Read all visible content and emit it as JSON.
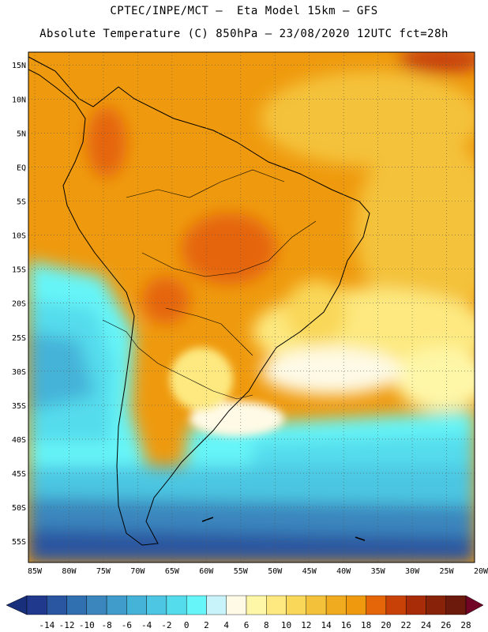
{
  "header": {
    "line1": "CPTEC/INPE/MCT –  Eta Model 15km – GFS",
    "line2": "Absolute Temperature (C) 850hPa – 23/08/2020 12UTC fct=28h"
  },
  "map": {
    "lon_range": [
      -85,
      -20
    ],
    "lat_range": [
      -58,
      17
    ],
    "lat_labels": [
      "15N",
      "10N",
      "5N",
      "EQ",
      "5S",
      "10S",
      "15S",
      "20S",
      "25S",
      "30S",
      "35S",
      "40S",
      "45S",
      "50S",
      "55S"
    ],
    "lat_values": [
      15,
      10,
      5,
      0,
      -5,
      -10,
      -15,
      -20,
      -25,
      -30,
      -35,
      -40,
      -45,
      -50,
      -55
    ],
    "lon_labels": [
      "85W",
      "80W",
      "75W",
      "70W",
      "65W",
      "60W",
      "55W",
      "50W",
      "45W",
      "40W",
      "35W",
      "30W",
      "25W",
      "20W"
    ],
    "lon_values": [
      -85,
      -80,
      -75,
      -70,
      -65,
      -60,
      -55,
      -50,
      -45,
      -40,
      -35,
      -30,
      -25,
      -20
    ],
    "gridlines": "dotted"
  },
  "colorbar": {
    "labels": [
      "-14",
      "-12",
      "-10",
      "-8",
      "-6",
      "-4",
      "-2",
      "0",
      "2",
      "4",
      "6",
      "8",
      "10",
      "12",
      "14",
      "16",
      "18",
      "20",
      "22",
      "24",
      "26",
      "28"
    ],
    "colors": [
      "#20398d",
      "#2a55a0",
      "#3070b0",
      "#3a86bd",
      "#3f9ccb",
      "#45b2d8",
      "#4cc6e2",
      "#55dcec",
      "#66f5f8",
      "#c8f3fb",
      "#fefae6",
      "#fef7a8",
      "#fde980",
      "#f9d758",
      "#f4c23a",
      "#f0ab1f",
      "#ef9a0e",
      "#e56509",
      "#c84208",
      "#a82c08",
      "#882208",
      "#6c1a0c"
    ],
    "under_color": "#18307c",
    "over_color": "#700526"
  }
}
